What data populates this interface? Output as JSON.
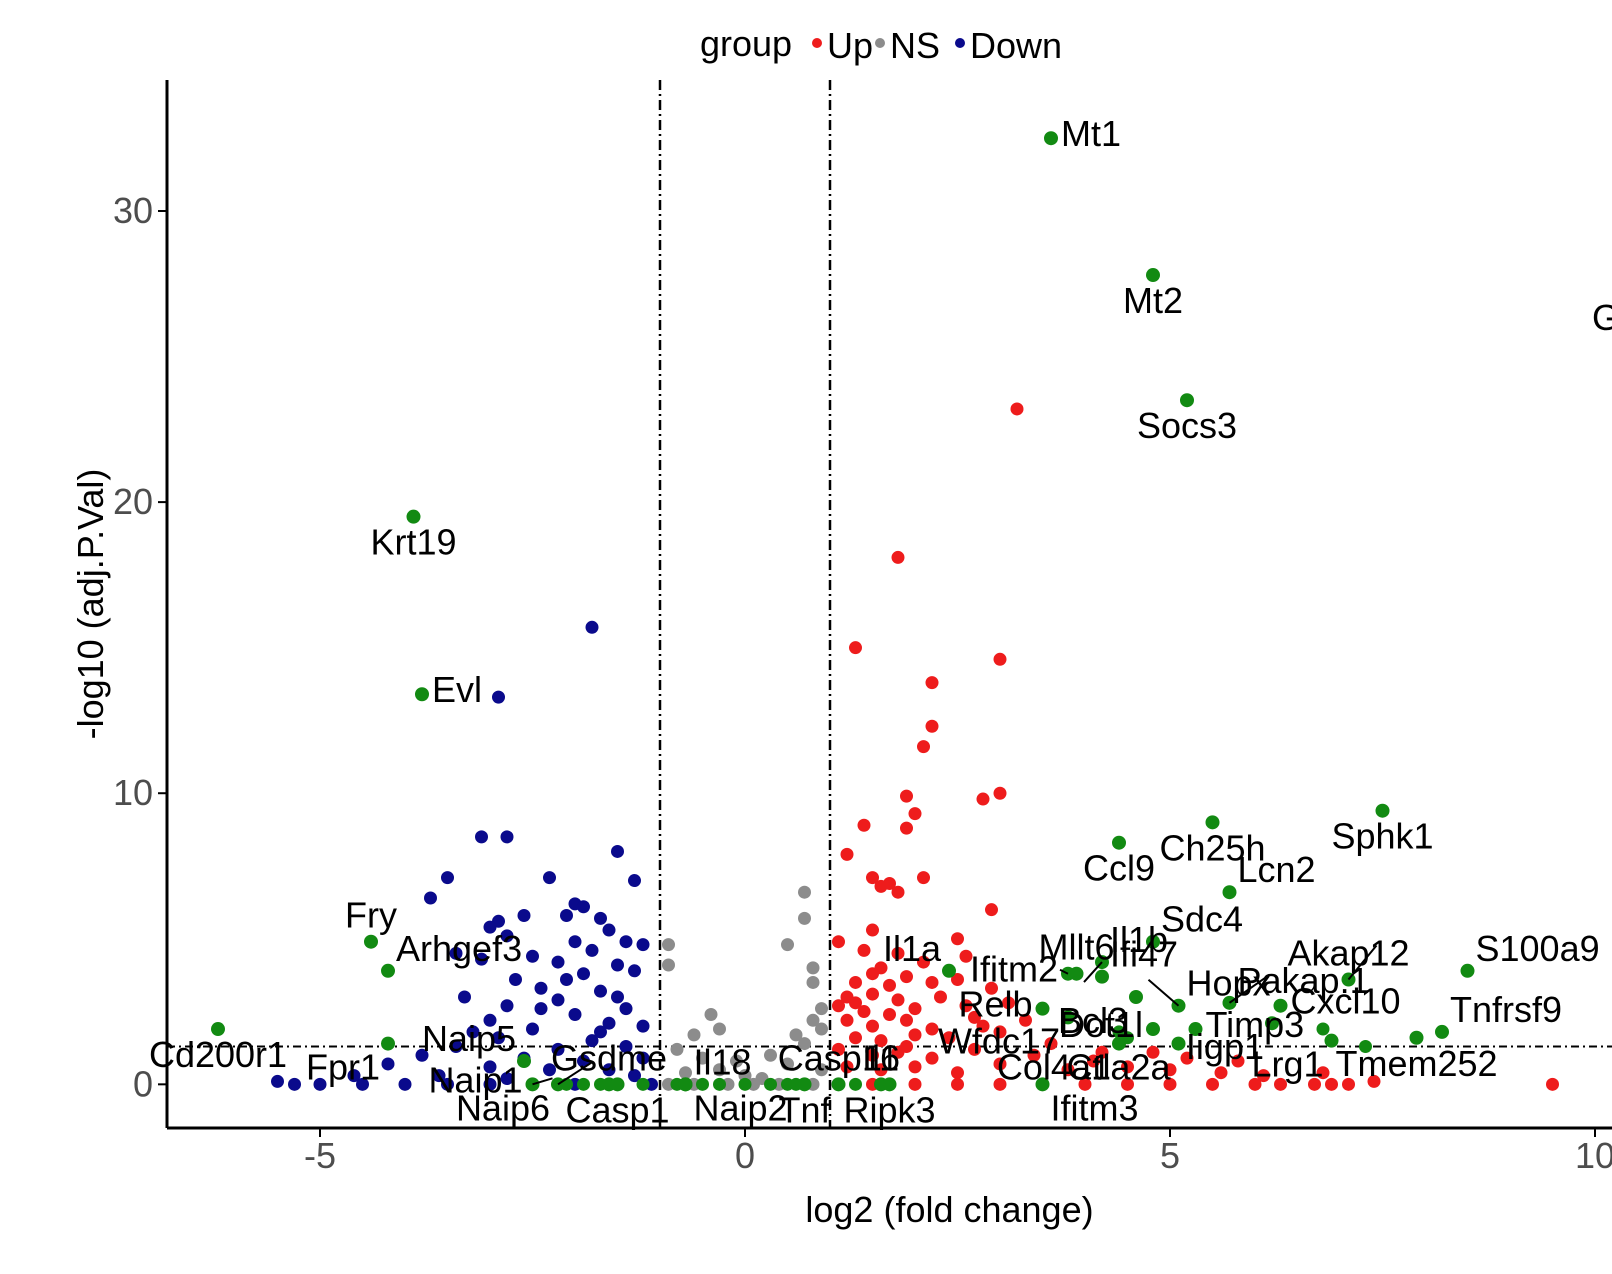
{
  "chart_data": {
    "type": "scatter",
    "subtype": "volcano",
    "title": "",
    "xlabel": "log2 (fold change)",
    "ylabel": "-log10 (adj.P.Val)",
    "xlim": [
      -6.8,
      10.2
    ],
    "ylim": [
      -1.5,
      34.5
    ],
    "xticks": [
      -5,
      0,
      5,
      10
    ],
    "yticks": [
      0,
      10,
      20,
      30
    ],
    "thresholds": {
      "log2fc": [
        -1,
        1
      ],
      "neglog10p": 1.3
    },
    "colors": {
      "Up": "#ee1c1c",
      "NS": "#8c8c8c",
      "Down": "#0a0a8c",
      "highlight": "#128a12"
    },
    "legend": {
      "title": "group",
      "position": "top",
      "entries": [
        "Up",
        "NS",
        "Down"
      ]
    },
    "series": [
      {
        "name": "Up",
        "points": [
          [
            3.2,
            23.2
          ],
          [
            1.8,
            18.1
          ],
          [
            1.3,
            15.0
          ],
          [
            3.0,
            14.6
          ],
          [
            2.2,
            13.8
          ],
          [
            2.2,
            12.3
          ],
          [
            2.1,
            11.6
          ],
          [
            3.0,
            10.0
          ],
          [
            2.8,
            9.8
          ],
          [
            1.9,
            9.9
          ],
          [
            2.0,
            9.3
          ],
          [
            1.4,
            8.9
          ],
          [
            1.9,
            8.8
          ],
          [
            1.2,
            7.9
          ],
          [
            1.5,
            7.1
          ],
          [
            1.7,
            6.9
          ],
          [
            2.1,
            7.1
          ],
          [
            1.6,
            6.8
          ],
          [
            1.8,
            6.6
          ],
          [
            2.9,
            6.0
          ],
          [
            1.5,
            5.3
          ],
          [
            2.5,
            5.0
          ],
          [
            1.1,
            4.9
          ],
          [
            1.4,
            4.6
          ],
          [
            1.8,
            4.5
          ],
          [
            2.6,
            4.4
          ],
          [
            1.6,
            4.0
          ],
          [
            2.1,
            4.2
          ],
          [
            1.5,
            3.8
          ],
          [
            1.9,
            3.7
          ],
          [
            1.3,
            3.5
          ],
          [
            1.7,
            3.4
          ],
          [
            2.2,
            3.5
          ],
          [
            2.5,
            3.6
          ],
          [
            2.9,
            3.3
          ],
          [
            1.2,
            3.0
          ],
          [
            1.5,
            3.1
          ],
          [
            1.8,
            2.9
          ],
          [
            2.0,
            2.6
          ],
          [
            2.3,
            3.0
          ],
          [
            1.1,
            2.7
          ],
          [
            1.4,
            2.5
          ],
          [
            1.7,
            2.4
          ],
          [
            2.6,
            2.7
          ],
          [
            3.1,
            2.8
          ],
          [
            1.2,
            2.2
          ],
          [
            1.5,
            2.0
          ],
          [
            1.9,
            2.2
          ],
          [
            2.2,
            1.9
          ],
          [
            2.8,
            2.0
          ],
          [
            3.3,
            2.2
          ],
          [
            1.3,
            1.6
          ],
          [
            1.6,
            1.5
          ],
          [
            2.0,
            1.7
          ],
          [
            2.4,
            1.6
          ],
          [
            3.0,
            1.8
          ],
          [
            1.1,
            1.2
          ],
          [
            1.5,
            1.0
          ],
          [
            1.8,
            1.1
          ],
          [
            2.2,
            0.9
          ],
          [
            2.7,
            1.2
          ],
          [
            3.4,
            1.0
          ],
          [
            4.1,
            0.8
          ],
          [
            1.2,
            0.6
          ],
          [
            1.6,
            0.5
          ],
          [
            2.0,
            0.6
          ],
          [
            2.5,
            0.4
          ],
          [
            3.0,
            0.7
          ],
          [
            3.8,
            0.5
          ],
          [
            4.5,
            0.6
          ],
          [
            5.0,
            0.5
          ],
          [
            5.6,
            0.4
          ],
          [
            6.1,
            0.3
          ],
          [
            4.8,
            1.1
          ],
          [
            5.2,
            0.9
          ],
          [
            5.8,
            0.8
          ],
          [
            6.8,
            0.4
          ],
          [
            7.4,
            0.1
          ],
          [
            7.1,
            0.0
          ],
          [
            6.7,
            0.0
          ],
          [
            6.9,
            0.0
          ],
          [
            9.5,
            0.0
          ],
          [
            6.3,
            0.0
          ],
          [
            1.5,
            0.0
          ],
          [
            2.0,
            0.0
          ],
          [
            2.5,
            0.0
          ],
          [
            3.0,
            0.0
          ],
          [
            3.5,
            0.0
          ],
          [
            4.0,
            0.0
          ],
          [
            4.5,
            0.0
          ],
          [
            5.0,
            0.0
          ],
          [
            5.5,
            0.0
          ],
          [
            6.0,
            0.0
          ],
          [
            1.3,
            2.8
          ],
          [
            2.7,
            2.3
          ],
          [
            1.9,
            1.3
          ],
          [
            3.6,
            1.4
          ],
          [
            4.2,
            1.1
          ]
        ]
      },
      {
        "name": "NS",
        "points": [
          [
            0.7,
            6.6
          ],
          [
            0.7,
            5.7
          ],
          [
            0.5,
            4.8
          ],
          [
            0.8,
            4.0
          ],
          [
            -0.9,
            4.8
          ],
          [
            -0.9,
            4.1
          ],
          [
            0.8,
            3.5
          ],
          [
            -0.4,
            2.4
          ],
          [
            0.9,
            2.6
          ],
          [
            0.8,
            2.2
          ],
          [
            -0.6,
            1.7
          ],
          [
            -0.3,
            1.9
          ],
          [
            0.6,
            1.7
          ],
          [
            0.7,
            1.4
          ],
          [
            -0.8,
            1.2
          ],
          [
            -0.5,
            0.9
          ],
          [
            0.3,
            1.0
          ],
          [
            0.5,
            0.7
          ],
          [
            -0.7,
            0.4
          ],
          [
            0.0,
            0.3
          ],
          [
            -0.3,
            0.5
          ],
          [
            0.2,
            0.2
          ],
          [
            -0.9,
            0.0
          ],
          [
            -0.6,
            0.0
          ],
          [
            -0.2,
            0.0
          ],
          [
            0.1,
            0.0
          ],
          [
            0.4,
            0.0
          ],
          [
            0.8,
            0.0
          ],
          [
            0.9,
            1.9
          ],
          [
            -0.1,
            0.8
          ],
          [
            0.9,
            0.5
          ]
        ]
      },
      {
        "name": "Down",
        "points": [
          [
            -1.8,
            15.7
          ],
          [
            -2.9,
            13.3
          ],
          [
            -3.1,
            8.5
          ],
          [
            -2.8,
            8.5
          ],
          [
            -1.5,
            8.0
          ],
          [
            -3.5,
            7.1
          ],
          [
            -2.3,
            7.1
          ],
          [
            -1.3,
            7.0
          ],
          [
            -3.7,
            6.4
          ],
          [
            -2.0,
            6.2
          ],
          [
            -1.9,
            6.1
          ],
          [
            -2.1,
            5.8
          ],
          [
            -2.6,
            5.8
          ],
          [
            -1.7,
            5.7
          ],
          [
            -2.9,
            5.6
          ],
          [
            -3.0,
            5.4
          ],
          [
            -1.6,
            5.3
          ],
          [
            -2.8,
            5.1
          ],
          [
            -2.0,
            4.9
          ],
          [
            -1.8,
            4.6
          ],
          [
            -3.4,
            4.5
          ],
          [
            -2.5,
            4.4
          ],
          [
            -1.4,
            4.9
          ],
          [
            -1.2,
            4.8
          ],
          [
            -2.2,
            4.2
          ],
          [
            -1.5,
            4.1
          ],
          [
            -3.1,
            4.3
          ],
          [
            -2.7,
            3.6
          ],
          [
            -1.9,
            3.8
          ],
          [
            -1.3,
            3.9
          ],
          [
            -2.4,
            3.3
          ],
          [
            -3.3,
            3.0
          ],
          [
            -1.7,
            3.2
          ],
          [
            -2.2,
            2.9
          ],
          [
            -2.8,
            2.7
          ],
          [
            -1.4,
            2.6
          ],
          [
            -2.0,
            2.4
          ],
          [
            -3.0,
            2.2
          ],
          [
            -1.6,
            2.1
          ],
          [
            -2.5,
            1.9
          ],
          [
            -1.2,
            2.0
          ],
          [
            -2.9,
            1.6
          ],
          [
            -1.8,
            1.5
          ],
          [
            -3.4,
            1.3
          ],
          [
            -2.2,
            1.2
          ],
          [
            -1.4,
            1.3
          ],
          [
            -3.8,
            1.0
          ],
          [
            -2.6,
            0.9
          ],
          [
            -1.9,
            0.8
          ],
          [
            -1.2,
            0.9
          ],
          [
            -4.2,
            0.7
          ],
          [
            -3.0,
            0.6
          ],
          [
            -2.3,
            0.5
          ],
          [
            -1.6,
            0.5
          ],
          [
            -4.6,
            0.3
          ],
          [
            -3.6,
            0.3
          ],
          [
            -2.8,
            0.2
          ],
          [
            -1.3,
            0.3
          ],
          [
            -5.5,
            0.1
          ],
          [
            -5.3,
            0.0
          ],
          [
            -5.0,
            0.0
          ],
          [
            -4.5,
            0.0
          ],
          [
            -4.0,
            0.0
          ],
          [
            -3.5,
            0.0
          ],
          [
            -3.0,
            0.0
          ],
          [
            -2.5,
            0.0
          ],
          [
            -2.0,
            0.0
          ],
          [
            -1.5,
            0.0
          ],
          [
            -1.1,
            0.0
          ],
          [
            -2.4,
            2.6
          ],
          [
            -1.7,
            1.8
          ],
          [
            -2.1,
            3.6
          ],
          [
            -3.2,
            1.8
          ],
          [
            -1.5,
            3.0
          ]
        ]
      }
    ],
    "labeled_genes": [
      {
        "label": "Mt1",
        "x": 3.6,
        "y": 32.5,
        "anchor": "E"
      },
      {
        "label": "Mt2",
        "x": 4.8,
        "y": 27.8,
        "anchor": "S"
      },
      {
        "label": "Socs3",
        "x": 5.2,
        "y": 23.5,
        "anchor": "S"
      },
      {
        "label": "Krt19",
        "x": -3.9,
        "y": 19.5,
        "anchor": "S"
      },
      {
        "label": "Evl",
        "x": -3.8,
        "y": 13.4,
        "anchor": "E"
      },
      {
        "label": "Sphk1",
        "x": 7.5,
        "y": 9.4,
        "anchor": "S"
      },
      {
        "label": "Ch25h",
        "x": 5.5,
        "y": 9.0,
        "anchor": "S"
      },
      {
        "label": "Ccl9",
        "x": 4.4,
        "y": 8.3,
        "anchor": "S"
      },
      {
        "label": "Lcn2",
        "x": 5.7,
        "y": 6.6,
        "anchor": "NE"
      },
      {
        "label": "Fry",
        "x": -4.4,
        "y": 4.9,
        "anchor": "N"
      },
      {
        "label": "Sdc4",
        "x": 4.8,
        "y": 4.9,
        "anchor": "NE"
      },
      {
        "label": "Arhgef3",
        "x": -4.2,
        "y": 3.9,
        "anchor": "NE"
      },
      {
        "label": "S100a9",
        "x": 8.5,
        "y": 3.9,
        "anchor": "NE"
      },
      {
        "label": "Mllt6",
        "x": 3.9,
        "y": 3.8,
        "anchor": "N"
      },
      {
        "label": "Il1b",
        "x": 4.2,
        "y": 4.2,
        "anchor": "NE"
      },
      {
        "label": "Il1a",
        "x": 2.4,
        "y": 3.9,
        "anchor": "NW"
      },
      {
        "label": "Ifitm2",
        "x": 3.8,
        "y": 3.8,
        "anchor": "W"
      },
      {
        "label": "Ifi47",
        "x": 4.2,
        "y": 3.7,
        "anchor": "NE"
      },
      {
        "label": "Akap12",
        "x": 7.1,
        "y": 3.6,
        "anchor": "N"
      },
      {
        "label": "Pakap.1",
        "x": 5.7,
        "y": 2.8,
        "anchor": "NE"
      },
      {
        "label": "Hopx",
        "x": 5.1,
        "y": 2.7,
        "anchor": "NE"
      },
      {
        "label": "Bcl3",
        "x": 4.6,
        "y": 3.0,
        "anchor": "SW"
      },
      {
        "label": "Cxcl10",
        "x": 6.3,
        "y": 2.7,
        "anchor": "E"
      },
      {
        "label": "Relb",
        "x": 3.5,
        "y": 2.6,
        "anchor": "W"
      },
      {
        "label": "Tnfrsf9",
        "x": 8.2,
        "y": 1.8,
        "anchor": "NE"
      },
      {
        "label": "Timp3",
        "x": 5.3,
        "y": 1.9,
        "anchor": "E"
      },
      {
        "label": "Dot1l",
        "x": 4.8,
        "y": 1.9,
        "anchor": "W"
      },
      {
        "label": "Wfdc17",
        "x": 3.8,
        "y": 2.3,
        "anchor": "SW"
      },
      {
        "label": "Ctla2a",
        "x": 5.1,
        "y": 1.4,
        "anchor": "SW"
      },
      {
        "label": "Col4a1",
        "x": 4.4,
        "y": 1.4,
        "anchor": "SW"
      },
      {
        "label": "Iigp1",
        "x": 6.2,
        "y": 2.1,
        "anchor": "SW"
      },
      {
        "label": "Lrg1",
        "x": 6.9,
        "y": 1.5,
        "anchor": "SW"
      },
      {
        "label": "Tmem252",
        "x": 7.9,
        "y": 1.6,
        "anchor": "S"
      },
      {
        "label": "Ifitm3",
        "x": 3.5,
        "y": 0.0,
        "anchor": "SE"
      },
      {
        "label": "Cd200r1",
        "x": -6.2,
        "y": 1.9,
        "anchor": "S"
      },
      {
        "label": "Fpr1",
        "x": -4.2,
        "y": 1.4,
        "anchor": "SW"
      },
      {
        "label": "Naip5",
        "x": -2.6,
        "y": 0.8,
        "anchor": "NW"
      },
      {
        "label": "Gsdme",
        "x": -1.6,
        "y": 0.0,
        "anchor": "N"
      },
      {
        "label": "Il18",
        "x": -0.7,
        "y": 0.0,
        "anchor": "NE"
      },
      {
        "label": "Naip1",
        "x": -2.5,
        "y": 0.0,
        "anchor": "W"
      },
      {
        "label": "Naip6",
        "x": -2.2,
        "y": 0.0,
        "anchor": "SW"
      },
      {
        "label": "Casp1",
        "x": -1.5,
        "y": 0.0,
        "anchor": "S"
      },
      {
        "label": "Naip2",
        "x": -0.7,
        "y": 0.0,
        "anchor": "SE"
      },
      {
        "label": "Tnf",
        "x": 0.7,
        "y": 0.0,
        "anchor": "S"
      },
      {
        "label": "Casp11",
        "x": 1.1,
        "y": 0.0,
        "anchor": "N"
      },
      {
        "label": "Il6",
        "x": 1.6,
        "y": 0.0,
        "anchor": "N"
      },
      {
        "label": "Ripk3",
        "x": 1.7,
        "y": 0.0,
        "anchor": "S"
      }
    ],
    "extra_highlight_points": [
      [
        -0.5,
        0.0
      ],
      [
        -0.3,
        0.0
      ],
      [
        0.0,
        0.0
      ],
      [
        0.3,
        0.0
      ],
      [
        0.5,
        0.0
      ],
      [
        -1.9,
        0.0
      ],
      [
        -1.2,
        0.0
      ],
      [
        -2.1,
        0.0
      ],
      [
        1.3,
        0.0
      ],
      [
        -0.8,
        0.0
      ],
      [
        0.6,
        0.0
      ],
      [
        -1.7,
        0.0
      ],
      [
        4.4,
        1.8
      ],
      [
        4.5,
        1.6
      ],
      [
        6.8,
        1.9
      ],
      [
        7.3,
        1.3
      ]
    ],
    "clipped_label": "G"
  }
}
